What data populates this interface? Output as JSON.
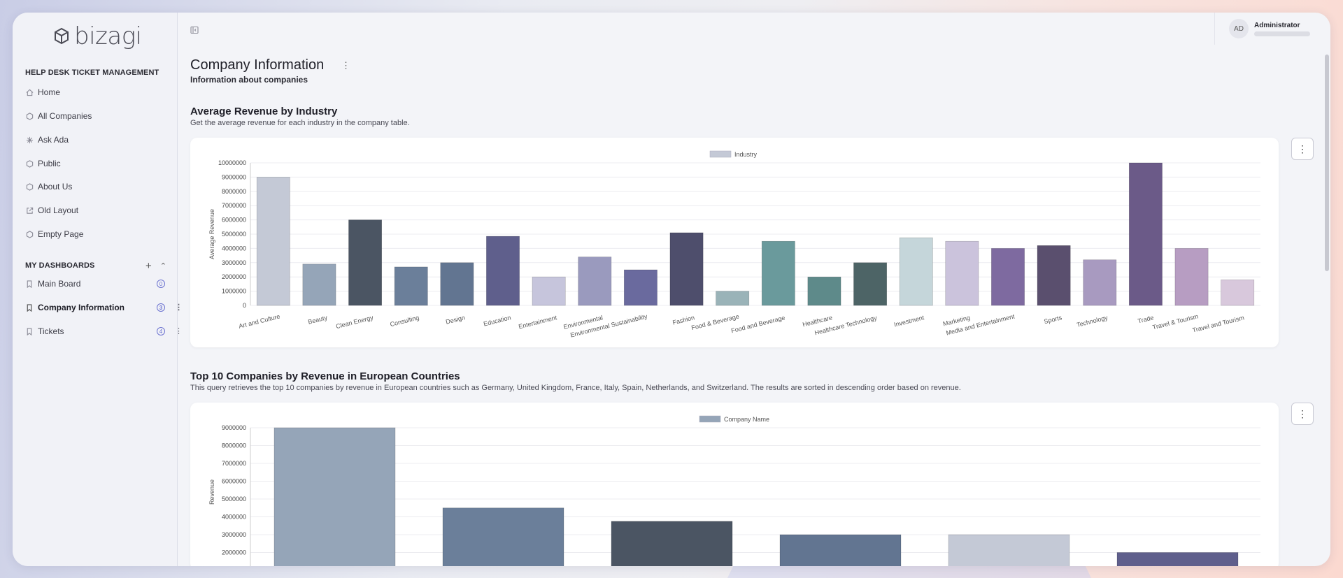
{
  "brand": {
    "logo_text": "bizagi"
  },
  "user": {
    "initials": "AD",
    "name": "Administrator"
  },
  "sidebar": {
    "app_section": "HELP DESK TICKET MANAGEMENT",
    "items": [
      {
        "label": "Home",
        "icon": "home-icon"
      },
      {
        "label": "All Companies",
        "icon": "hexagon-icon"
      },
      {
        "label": "Ask Ada",
        "icon": "sparkle-icon"
      },
      {
        "label": "Public",
        "icon": "hexagon-icon"
      },
      {
        "label": "About Us",
        "icon": "hexagon-icon"
      },
      {
        "label": "Old Layout",
        "icon": "external-link-icon"
      },
      {
        "label": "Empty Page",
        "icon": "hexagon-icon"
      }
    ],
    "dashboards_section": "MY DASHBOARDS",
    "dashboards": [
      {
        "label": "Main Board",
        "count": "0",
        "active": false
      },
      {
        "label": "Company Information",
        "count": "3",
        "active": true
      },
      {
        "label": "Tickets",
        "count": "4",
        "active": false
      }
    ]
  },
  "page": {
    "title": "Company Information",
    "subtitle": "Information about companies"
  },
  "widgets": [
    {
      "title": "Average Revenue by Industry",
      "description": "Get the average revenue for each industry in the company table."
    },
    {
      "title": "Top 10 Companies by Revenue in European Countries",
      "description": "This query retrieves the top 10 companies by revenue in European countries such as Germany, United Kingdom, France, Italy, Spain, Netherlands, and Switzerland. The results are sorted in descending order based on revenue."
    }
  ],
  "chart_data": [
    {
      "type": "bar",
      "legend": "Industry",
      "ylabel": "Average Revenue",
      "ylim": [
        0,
        10000000
      ],
      "yticks": [
        "0",
        "1000000",
        "2000000",
        "3000000",
        "4000000",
        "5000000",
        "6000000",
        "7000000",
        "8000000",
        "9000000",
        "10000000"
      ],
      "categories": [
        "Art and Culture",
        "Beauty",
        "Clean Energy",
        "Consulting",
        "Design",
        "Education",
        "Entertainment",
        "Environmental",
        "Environmental Sustainability",
        "Fashion",
        "Food & Beverage",
        "Food and Beverage",
        "Healthcare",
        "Healthcare Technology",
        "Investment",
        "Marketing",
        "Media and Entertainment",
        "Sports",
        "Technology",
        "Trade",
        "Travel & Tourism",
        "Travel and Tourism"
      ],
      "values": [
        9000000,
        2900000,
        6000000,
        2700000,
        3000000,
        4850000,
        2000000,
        3400000,
        2500000,
        5100000,
        1000000,
        4500000,
        2000000,
        3000000,
        4750000,
        4500000,
        4000000,
        4200000,
        3200000,
        10000000,
        4000000,
        1800000
      ],
      "colors": [
        "#c4c9d6",
        "#95a5b8",
        "#4b5563",
        "#6b7f9a",
        "#627591",
        "#5f5f8c",
        "#c6c5dc",
        "#9a9abe",
        "#6a6a9e",
        "#4e4e6c",
        "#9ab3b8",
        "#6a9a9c",
        "#5e8a8a",
        "#4d6466",
        "#c5d6da",
        "#cbc3dc",
        "#7e6aa0",
        "#5a4f6e",
        "#a89ac0",
        "#6b5a88",
        "#b79dc2",
        "#d8c8dc"
      ]
    },
    {
      "type": "bar",
      "legend": "Company Name",
      "ylabel": "Revenue",
      "ylim": [
        0,
        9000000
      ],
      "yticks_visible": [
        "2000000",
        "3000000",
        "4000000",
        "5000000",
        "6000000",
        "7000000",
        "8000000",
        "9000000"
      ],
      "values": [
        9000000,
        4500000,
        3750000,
        3000000,
        3000000,
        2000000
      ],
      "colors": [
        "#95a5b8",
        "#6b7f9a",
        "#4b5563",
        "#627591",
        "#c4c9d6",
        "#5f5f8c"
      ]
    }
  ]
}
